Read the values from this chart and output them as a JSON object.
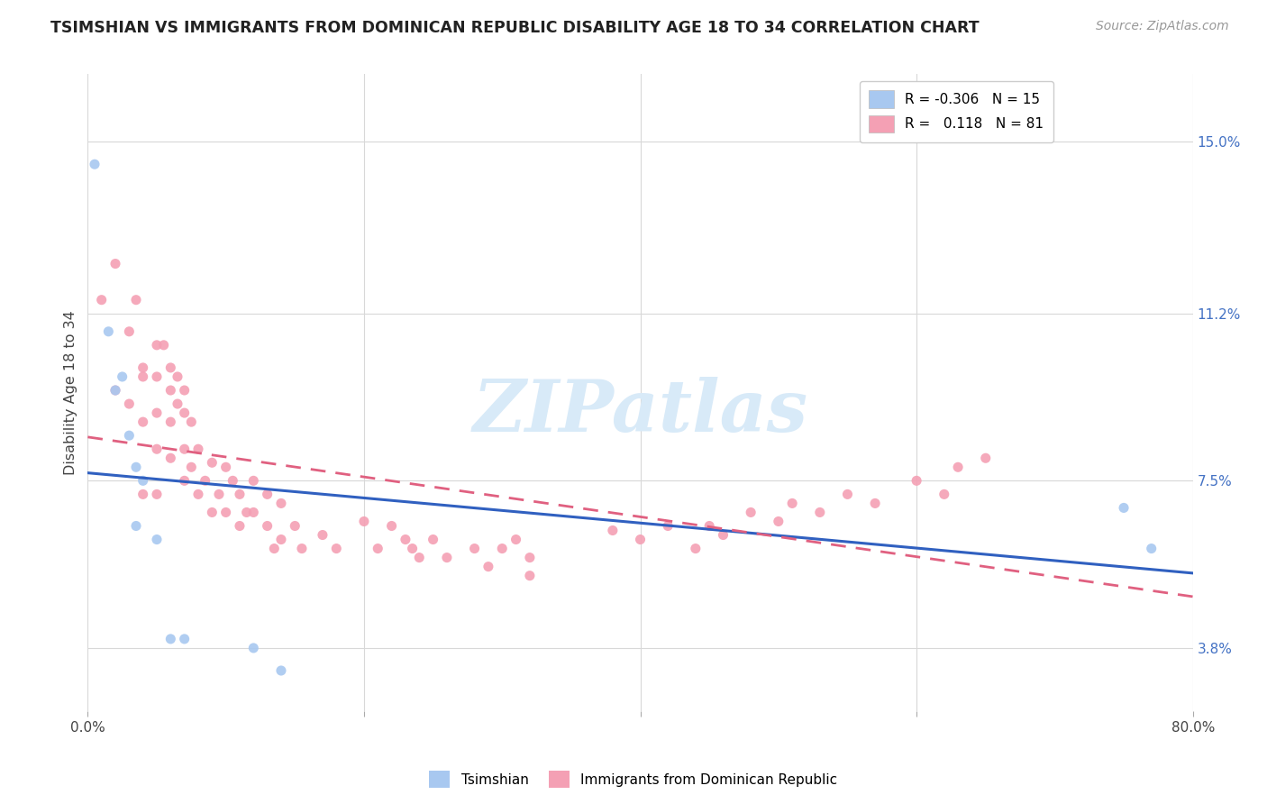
{
  "title": "TSIMSHIAN VS IMMIGRANTS FROM DOMINICAN REPUBLIC DISABILITY AGE 18 TO 34 CORRELATION CHART",
  "source_text": "Source: ZipAtlas.com",
  "ylabel": "Disability Age 18 to 34",
  "xlim": [
    0.0,
    0.8
  ],
  "ylim": [
    0.024,
    0.165
  ],
  "x_ticks": [
    0.0,
    0.2,
    0.4,
    0.6,
    0.8
  ],
  "x_tick_labels": [
    "0.0%",
    "",
    "",
    "",
    "80.0%"
  ],
  "y_tick_labels_right": [
    "3.8%",
    "7.5%",
    "11.2%",
    "15.0%"
  ],
  "y_ticks_right": [
    0.038,
    0.075,
    0.112,
    0.15
  ],
  "watermark": "ZIPatlas",
  "tsimshian_color": "#a8c8f0",
  "dominican_color": "#f4a0b4",
  "tsimshian_line_color": "#3060c0",
  "dominican_line_color": "#e06080",
  "background_color": "#ffffff",
  "grid_color": "#d8d8d8",
  "marker_size": 8,
  "marker_alpha": 0.9,
  "R_tsimshian": -0.306,
  "N_tsimshian": 15,
  "R_dominican": 0.118,
  "N_dominican": 81,
  "tsimshian_x": [
    0.005,
    0.015,
    0.02,
    0.025,
    0.03,
    0.035,
    0.035,
    0.04,
    0.05,
    0.06,
    0.07,
    0.12,
    0.14,
    0.75,
    0.77
  ],
  "tsimshian_y": [
    0.145,
    0.108,
    0.095,
    0.098,
    0.085,
    0.078,
    0.065,
    0.075,
    0.062,
    0.04,
    0.04,
    0.038,
    0.033,
    0.069,
    0.06
  ],
  "dominican_x": [
    0.01,
    0.02,
    0.02,
    0.03,
    0.03,
    0.035,
    0.04,
    0.04,
    0.04,
    0.04,
    0.05,
    0.05,
    0.05,
    0.05,
    0.05,
    0.055,
    0.06,
    0.06,
    0.06,
    0.06,
    0.065,
    0.065,
    0.07,
    0.07,
    0.07,
    0.07,
    0.075,
    0.075,
    0.08,
    0.08,
    0.085,
    0.09,
    0.09,
    0.095,
    0.1,
    0.1,
    0.105,
    0.11,
    0.11,
    0.115,
    0.12,
    0.12,
    0.13,
    0.13,
    0.135,
    0.14,
    0.14,
    0.15,
    0.155,
    0.17,
    0.18,
    0.2,
    0.21,
    0.22,
    0.23,
    0.235,
    0.24,
    0.25,
    0.26,
    0.28,
    0.29,
    0.3,
    0.31,
    0.32,
    0.32,
    0.38,
    0.4,
    0.42,
    0.44,
    0.45,
    0.46,
    0.48,
    0.5,
    0.51,
    0.53,
    0.55,
    0.57,
    0.6,
    0.62,
    0.63,
    0.65
  ],
  "dominican_y": [
    0.115,
    0.123,
    0.095,
    0.108,
    0.092,
    0.115,
    0.1,
    0.098,
    0.088,
    0.072,
    0.105,
    0.098,
    0.09,
    0.082,
    0.072,
    0.105,
    0.1,
    0.095,
    0.088,
    0.08,
    0.098,
    0.092,
    0.095,
    0.09,
    0.082,
    0.075,
    0.088,
    0.078,
    0.082,
    0.072,
    0.075,
    0.079,
    0.068,
    0.072,
    0.078,
    0.068,
    0.075,
    0.072,
    0.065,
    0.068,
    0.075,
    0.068,
    0.072,
    0.065,
    0.06,
    0.07,
    0.062,
    0.065,
    0.06,
    0.063,
    0.06,
    0.066,
    0.06,
    0.065,
    0.062,
    0.06,
    0.058,
    0.062,
    0.058,
    0.06,
    0.056,
    0.06,
    0.062,
    0.058,
    0.054,
    0.064,
    0.062,
    0.065,
    0.06,
    0.065,
    0.063,
    0.068,
    0.066,
    0.07,
    0.068,
    0.072,
    0.07,
    0.075,
    0.072,
    0.078,
    0.08
  ]
}
